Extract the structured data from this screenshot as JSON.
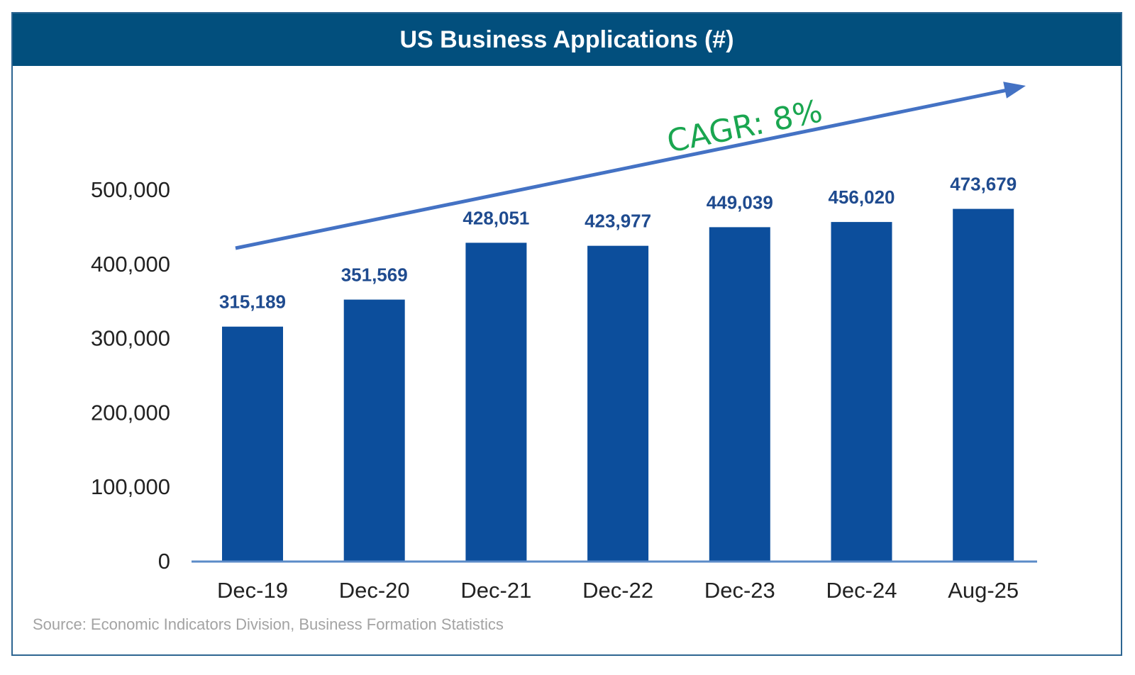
{
  "chart_data": {
    "type": "bar",
    "title": "US Business Applications (#)",
    "categories": [
      "Dec-19",
      "Dec-20",
      "Dec-21",
      "Dec-22",
      "Dec-23",
      "Dec-24",
      "Aug-25"
    ],
    "values": [
      315189,
      351569,
      428051,
      423977,
      449039,
      456020,
      473679
    ],
    "value_labels": [
      "315,189",
      "351,569",
      "428,051",
      "423,977",
      "449,039",
      "456,020",
      "473,679"
    ],
    "xlabel": "",
    "ylabel": "",
    "ylim": [
      0,
      500000
    ],
    "yticks": [
      0,
      100000,
      200000,
      300000,
      400000,
      500000
    ],
    "ytick_labels": [
      "0",
      "100,000",
      "200,000",
      "300,000",
      "400,000",
      "500,000"
    ],
    "grid": false,
    "legend": null,
    "annotation": {
      "text": "CAGR: 8%",
      "type": "trend-arrow"
    },
    "colors": {
      "bar": "#0c4e9c",
      "value_label": "#1f4b8f",
      "arrow": "#4472c4",
      "annotation": "#1aa650",
      "axis": "#5b8bc8",
      "tick_label": "#222222",
      "header": "#024f7d"
    }
  },
  "header": {
    "title": "US Business Applications (#)"
  },
  "footer": {
    "source": "Source: Economic Indicators Division, Business Formation Statistics"
  }
}
